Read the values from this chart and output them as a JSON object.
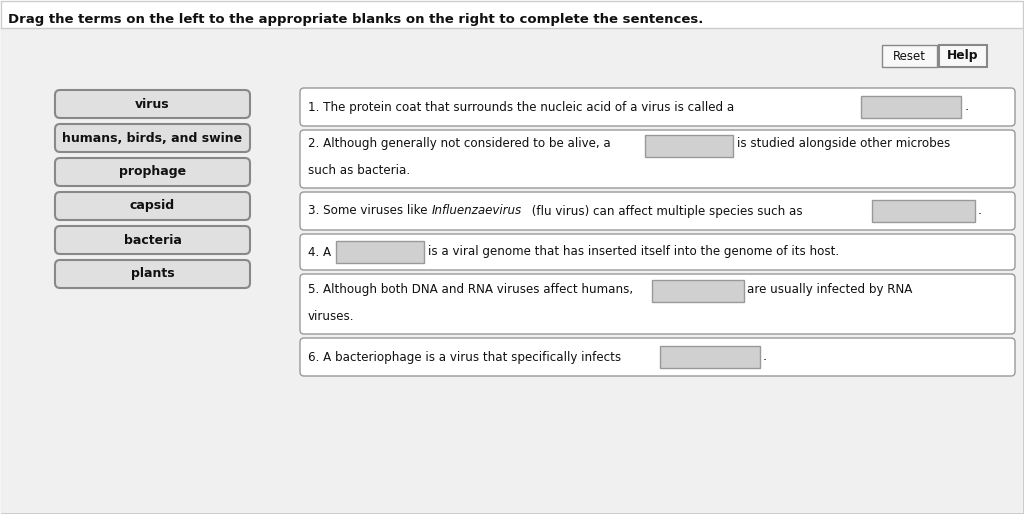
{
  "title": "Drag the terms on the left to the appropriate blanks on the right to complete the sentences.",
  "bg_color": "#ffffff",
  "panel_bg": "#ffffff",
  "outer_bg": "#f5f5f5",
  "box_fill_left": "#e0e0e0",
  "box_fill_blank": "#d0d0d0",
  "box_stroke_left": "#888888",
  "box_stroke_right": "#999999",
  "text_color": "#111111",
  "left_terms": [
    "virus",
    "humans, birds, and swine",
    "prophage",
    "capsid",
    "bacteria",
    "plants"
  ],
  "reset_label": "Reset",
  "help_label": "Help",
  "fig_w": 10.24,
  "fig_h": 5.14,
  "dpi": 100
}
